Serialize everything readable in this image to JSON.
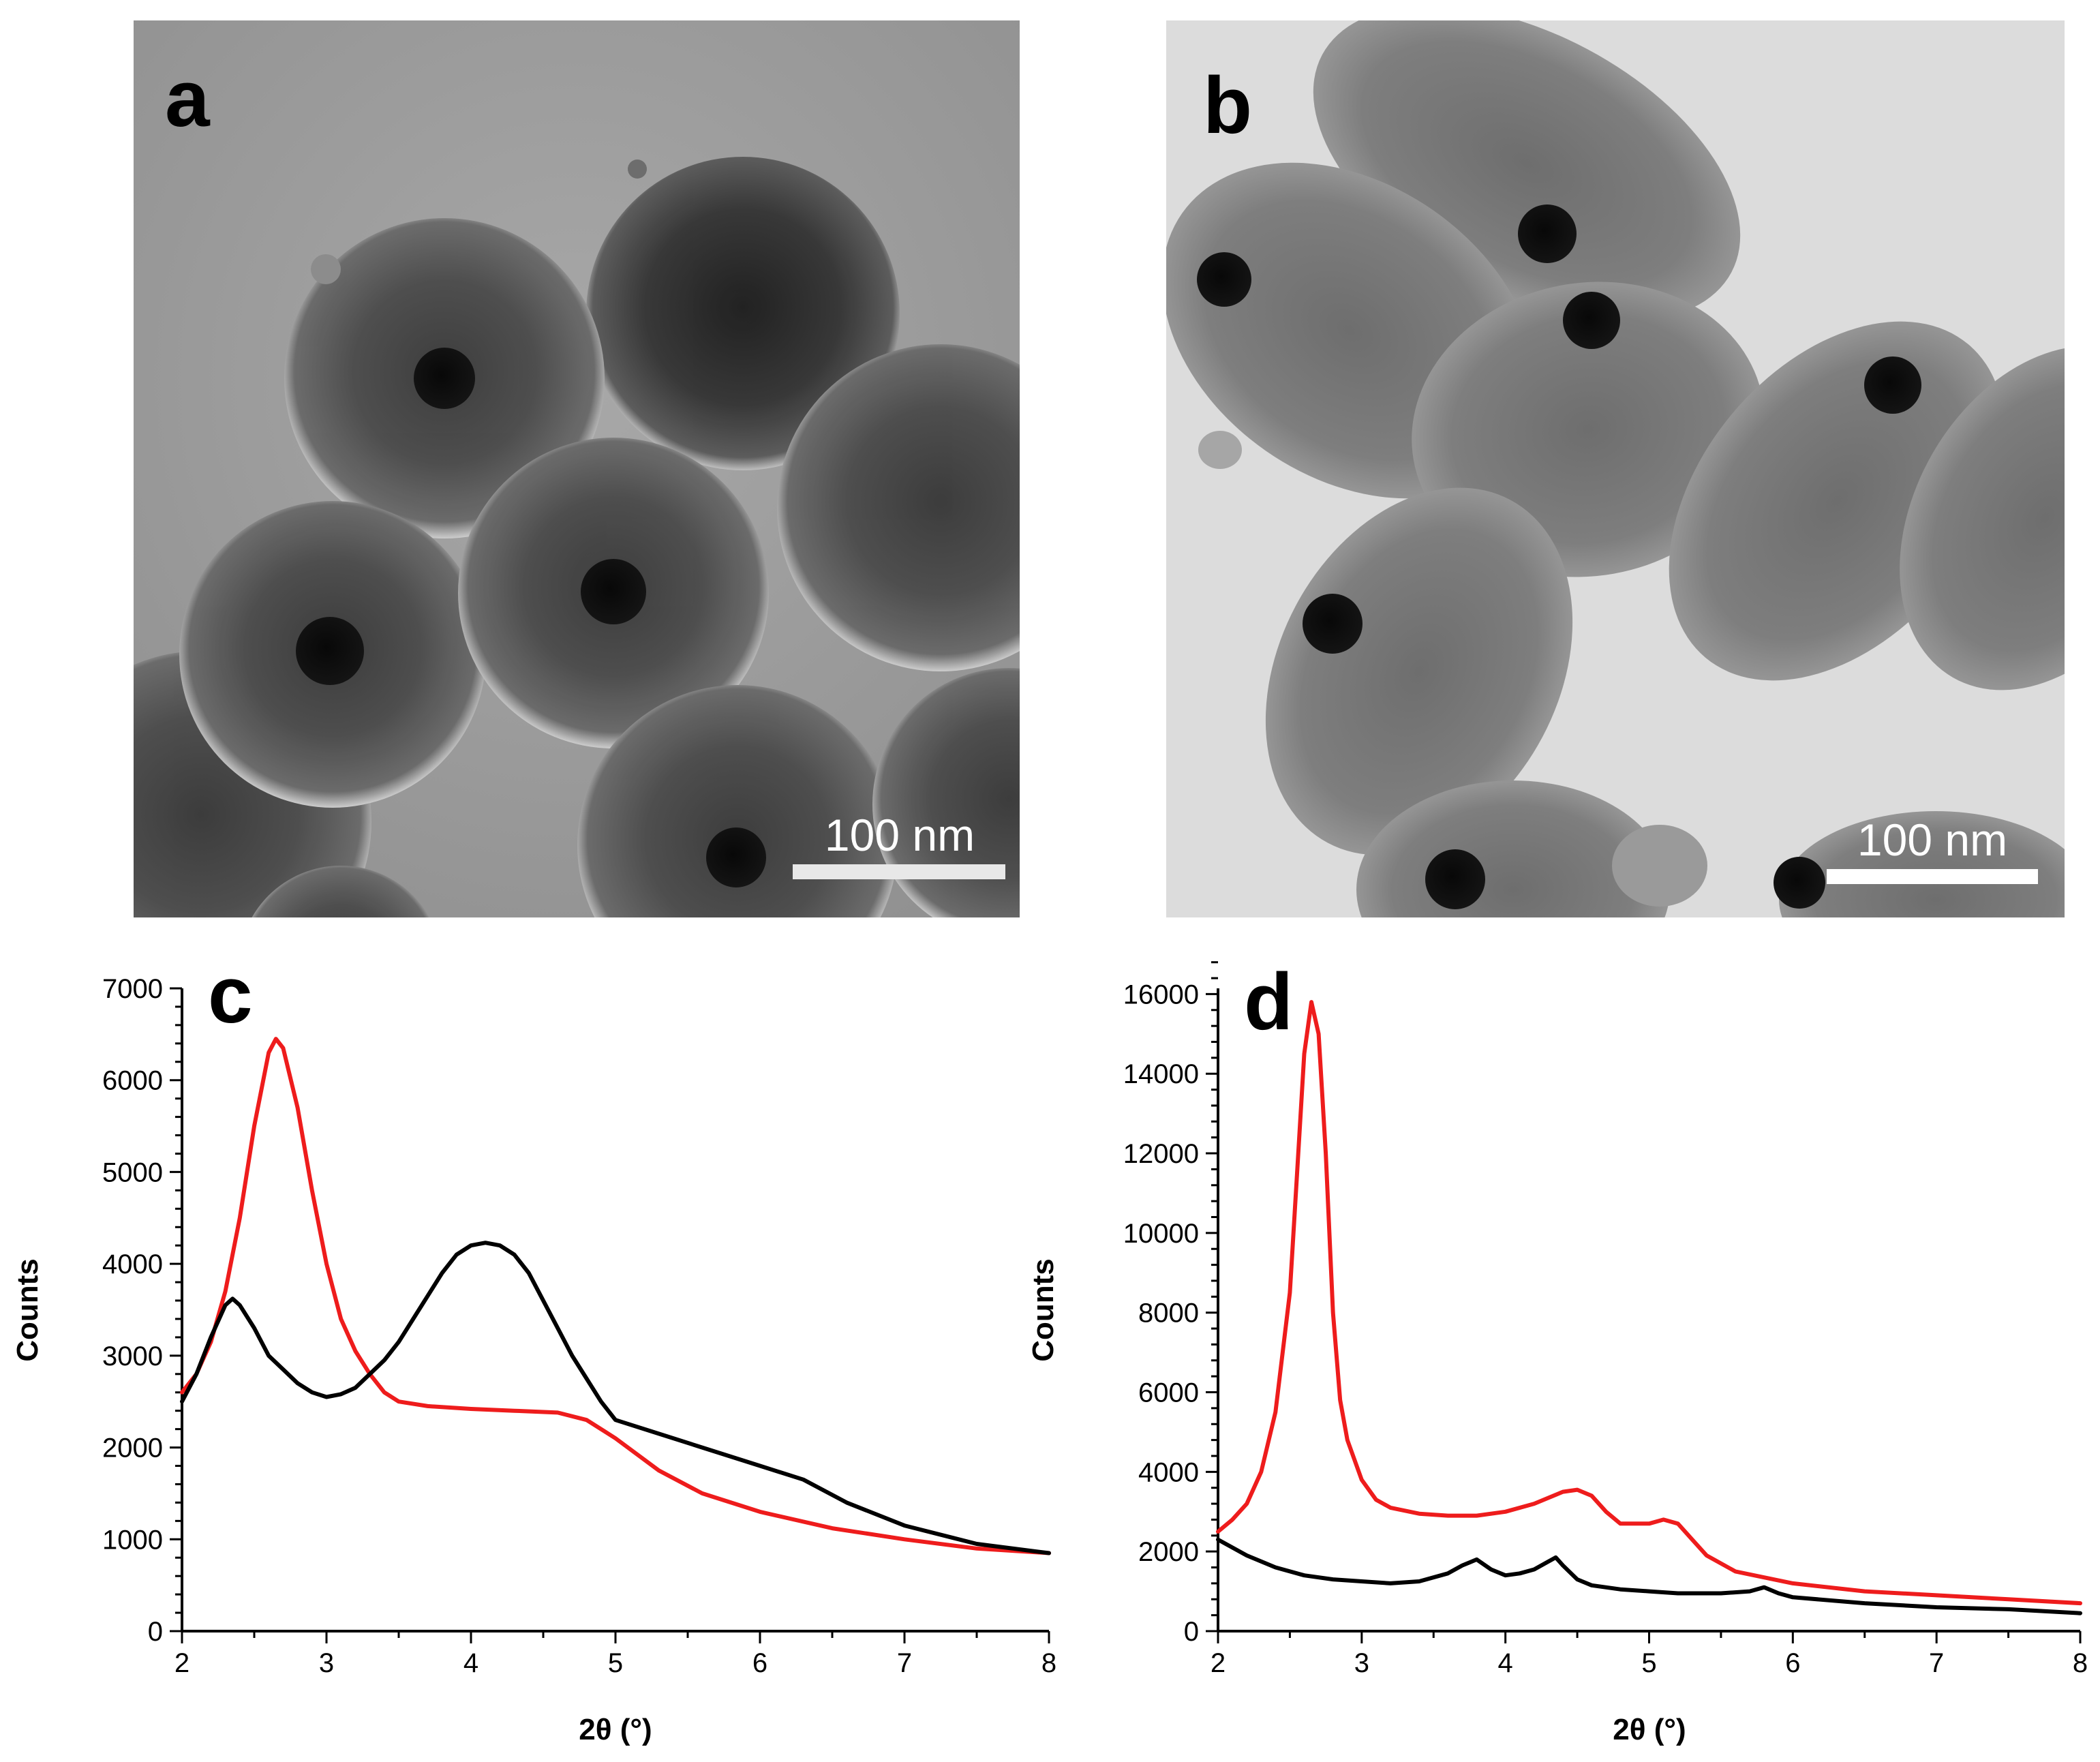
{
  "panels": {
    "a": {
      "letter": "a",
      "scalebar_label": "100 nm"
    },
    "b": {
      "letter": "b",
      "scalebar_label": "100 nm"
    },
    "c": {
      "letter": "c"
    },
    "d": {
      "letter": "d"
    }
  },
  "colors": {
    "red_series": "#ee1c1c",
    "black_series": "#000000",
    "tem_background_a": "#9a9a9a",
    "tem_background_b": "#dcdcdc"
  },
  "chart_data": [
    {
      "panel": "c",
      "type": "line",
      "xlabel": "2θ (°)",
      "ylabel": "Counts",
      "xlim": [
        2,
        8
      ],
      "ylim": [
        0,
        7000
      ],
      "xticks": [
        2,
        3,
        4,
        5,
        6,
        7,
        8
      ],
      "yticks": [
        0,
        1000,
        2000,
        3000,
        4000,
        5000,
        6000,
        7000
      ],
      "series": [
        {
          "color": "#ee1c1c",
          "x": [
            2.0,
            2.1,
            2.2,
            2.3,
            2.4,
            2.5,
            2.6,
            2.65,
            2.7,
            2.8,
            2.9,
            3.0,
            3.1,
            3.2,
            3.3,
            3.4,
            3.5,
            3.7,
            4.0,
            4.3,
            4.6,
            4.8,
            5.0,
            5.3,
            5.6,
            6.0,
            6.5,
            7.0,
            7.5,
            8.0
          ],
          "y": [
            2600,
            2800,
            3150,
            3700,
            4500,
            5500,
            6300,
            6450,
            6350,
            5700,
            4800,
            4000,
            3400,
            3050,
            2800,
            2600,
            2500,
            2450,
            2420,
            2400,
            2380,
            2300,
            2100,
            1750,
            1500,
            1300,
            1120,
            1000,
            900,
            850
          ]
        },
        {
          "color": "#000000",
          "x": [
            2.0,
            2.1,
            2.2,
            2.3,
            2.35,
            2.4,
            2.5,
            2.6,
            2.7,
            2.8,
            2.9,
            3.0,
            3.1,
            3.2,
            3.3,
            3.4,
            3.5,
            3.6,
            3.7,
            3.8,
            3.9,
            4.0,
            4.1,
            4.2,
            4.3,
            4.4,
            4.5,
            4.6,
            4.7,
            4.8,
            4.9,
            5.0,
            5.3,
            5.6,
            6.0,
            6.3,
            6.6,
            7.0,
            7.5,
            8.0
          ],
          "y": [
            2500,
            2800,
            3200,
            3550,
            3620,
            3550,
            3300,
            3000,
            2850,
            2700,
            2600,
            2550,
            2580,
            2650,
            2800,
            2950,
            3150,
            3400,
            3650,
            3900,
            4100,
            4200,
            4230,
            4200,
            4100,
            3900,
            3600,
            3300,
            3000,
            2750,
            2500,
            2300,
            2150,
            2000,
            1800,
            1650,
            1400,
            1150,
            950,
            850
          ]
        }
      ]
    },
    {
      "panel": "d",
      "type": "line",
      "xlabel": "2θ (°)",
      "ylabel": "Counts",
      "xlim": [
        2,
        8
      ],
      "ylim": [
        0,
        17000
      ],
      "xticks": [
        2,
        3,
        4,
        5,
        6,
        7,
        8
      ],
      "yticks": [
        0,
        2000,
        4000,
        6000,
        8000,
        10000,
        12000,
        14000,
        16000
      ],
      "series": [
        {
          "color": "#ee1c1c",
          "x": [
            2.0,
            2.1,
            2.2,
            2.3,
            2.4,
            2.5,
            2.55,
            2.6,
            2.65,
            2.7,
            2.75,
            2.8,
            2.85,
            2.9,
            3.0,
            3.1,
            3.2,
            3.4,
            3.6,
            3.8,
            4.0,
            4.2,
            4.4,
            4.5,
            4.6,
            4.7,
            4.8,
            5.0,
            5.1,
            5.2,
            5.3,
            5.4,
            5.6,
            6.0,
            6.5,
            7.0,
            7.5,
            8.0
          ],
          "y": [
            2500,
            2800,
            3200,
            4000,
            5500,
            8500,
            11500,
            14500,
            15800,
            15000,
            12000,
            8000,
            5800,
            4800,
            3800,
            3300,
            3100,
            2950,
            2900,
            2900,
            3000,
            3200,
            3500,
            3550,
            3400,
            3000,
            2700,
            2700,
            2800,
            2700,
            2300,
            1900,
            1500,
            1200,
            1000,
            900,
            800,
            700
          ]
        },
        {
          "color": "#000000",
          "x": [
            2.0,
            2.2,
            2.4,
            2.6,
            2.8,
            3.0,
            3.2,
            3.4,
            3.6,
            3.7,
            3.8,
            3.9,
            4.0,
            4.1,
            4.2,
            4.3,
            4.35,
            4.4,
            4.5,
            4.6,
            4.8,
            5.0,
            5.2,
            5.5,
            5.7,
            5.8,
            5.9,
            6.0,
            6.5,
            7.0,
            7.5,
            8.0
          ],
          "y": [
            2300,
            1900,
            1600,
            1400,
            1300,
            1250,
            1200,
            1250,
            1450,
            1650,
            1800,
            1550,
            1400,
            1450,
            1550,
            1750,
            1850,
            1650,
            1300,
            1150,
            1050,
            1000,
            950,
            950,
            1000,
            1100,
            950,
            850,
            700,
            600,
            550,
            450
          ]
        }
      ]
    }
  ]
}
